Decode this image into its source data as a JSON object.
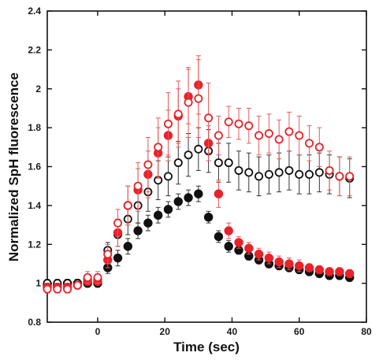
{
  "chart_data": {
    "type": "scatter",
    "title": "",
    "xlabel": "Time (sec)",
    "ylabel": "Normalized SpH fluorescence",
    "xlim": [
      -15,
      80
    ],
    "ylim": [
      0.8,
      2.4
    ],
    "x_ticks": [
      0,
      20,
      40,
      60,
      80
    ],
    "y_ticks": [
      0.8,
      1,
      1.2,
      1.4,
      1.6,
      1.8,
      2,
      2.2,
      2.4
    ],
    "y_tick_labels": [
      "0.8",
      "1",
      "1.2",
      "1.4",
      "1.6",
      "1.8",
      "2",
      "2.2",
      "2.4"
    ],
    "grid": false,
    "legend": "none",
    "error_bars": true,
    "series": [
      {
        "marker": "open-circle",
        "color": "#e8222a",
        "x": [
          -15,
          -12,
          -9,
          -6,
          -3,
          0,
          3,
          6,
          9,
          12,
          15,
          18,
          21,
          24,
          27,
          30,
          33,
          36,
          39,
          42,
          45,
          48,
          51,
          54,
          57,
          60,
          63,
          66,
          69,
          72,
          75
        ],
        "y": [
          0.97,
          0.97,
          0.97,
          0.99,
          1.03,
          1.03,
          1.15,
          1.31,
          1.4,
          1.5,
          1.61,
          1.7,
          1.82,
          1.87,
          1.93,
          1.95,
          1.85,
          1.76,
          1.83,
          1.82,
          1.81,
          1.76,
          1.77,
          1.74,
          1.78,
          1.76,
          1.72,
          1.7,
          1.58,
          1.55,
          1.55
        ],
        "err": [
          0.02,
          0.02,
          0.02,
          0.02,
          0.03,
          0.03,
          0.05,
          0.07,
          0.1,
          0.12,
          0.14,
          0.15,
          0.16,
          0.17,
          0.18,
          0.2,
          0.18,
          0.1,
          0.08,
          0.08,
          0.09,
          0.1,
          0.1,
          0.1,
          0.1,
          0.1,
          0.09,
          0.1,
          0.1,
          0.1,
          0.1
        ]
      },
      {
        "marker": "filled-circle",
        "color": "#e8222a",
        "x": [
          -15,
          -12,
          -9,
          -6,
          -3,
          0,
          3,
          6,
          9,
          12,
          15,
          18,
          21,
          24,
          27,
          30,
          33,
          36,
          39,
          42,
          45,
          48,
          51,
          54,
          57,
          60,
          63,
          66,
          69,
          72,
          75
        ],
        "y": [
          0.98,
          0.98,
          0.98,
          0.99,
          1.01,
          1.01,
          1.12,
          1.26,
          1.4,
          1.48,
          1.56,
          1.67,
          1.76,
          1.86,
          1.96,
          2.02,
          1.72,
          1.46,
          1.27,
          1.21,
          1.18,
          1.15,
          1.13,
          1.11,
          1.1,
          1.09,
          1.08,
          1.07,
          1.06,
          1.06,
          1.05
        ],
        "err": [
          0.02,
          0.02,
          0.02,
          0.02,
          0.02,
          0.02,
          0.04,
          0.07,
          0.1,
          0.11,
          0.12,
          0.13,
          0.13,
          0.14,
          0.14,
          0.15,
          0.09,
          0.07,
          0.04,
          0.03,
          0.03,
          0.03,
          0.03,
          0.03,
          0.03,
          0.03,
          0.02,
          0.02,
          0.02,
          0.02,
          0.02
        ]
      },
      {
        "marker": "open-circle",
        "color": "#111111",
        "x": [
          -15,
          -12,
          -9,
          -6,
          -3,
          0,
          3,
          6,
          9,
          12,
          15,
          18,
          21,
          24,
          27,
          30,
          33,
          36,
          39,
          42,
          45,
          48,
          51,
          54,
          57,
          60,
          63,
          66,
          69,
          72,
          75
        ],
        "y": [
          1.0,
          1.0,
          1.0,
          1.0,
          1.02,
          1.02,
          1.17,
          1.25,
          1.33,
          1.4,
          1.47,
          1.53,
          1.55,
          1.62,
          1.66,
          1.69,
          1.68,
          1.62,
          1.62,
          1.58,
          1.57,
          1.55,
          1.56,
          1.57,
          1.58,
          1.56,
          1.56,
          1.57,
          1.56,
          1.55,
          1.54
        ],
        "err": [
          0.02,
          0.02,
          0.02,
          0.02,
          0.02,
          0.02,
          0.04,
          0.06,
          0.08,
          0.09,
          0.1,
          0.1,
          0.1,
          0.11,
          0.11,
          0.11,
          0.11,
          0.1,
          0.1,
          0.1,
          0.1,
          0.1,
          0.1,
          0.1,
          0.1,
          0.1,
          0.1,
          0.1,
          0.1,
          0.1,
          0.1
        ]
      },
      {
        "marker": "filled-circle",
        "color": "#111111",
        "x": [
          -15,
          -12,
          -9,
          -6,
          -3,
          0,
          3,
          6,
          9,
          12,
          15,
          18,
          21,
          24,
          27,
          30,
          33,
          36,
          39,
          42,
          45,
          48,
          51,
          54,
          57,
          60,
          63,
          66,
          69,
          72,
          75
        ],
        "y": [
          0.99,
          0.99,
          1.0,
          1.0,
          1.0,
          1.0,
          1.08,
          1.13,
          1.19,
          1.27,
          1.31,
          1.35,
          1.38,
          1.42,
          1.44,
          1.46,
          1.34,
          1.24,
          1.19,
          1.17,
          1.14,
          1.12,
          1.1,
          1.09,
          1.08,
          1.07,
          1.06,
          1.05,
          1.04,
          1.04,
          1.03
        ],
        "err": [
          0.02,
          0.02,
          0.02,
          0.02,
          0.02,
          0.02,
          0.03,
          0.04,
          0.04,
          0.04,
          0.04,
          0.04,
          0.04,
          0.04,
          0.04,
          0.04,
          0.03,
          0.03,
          0.03,
          0.02,
          0.02,
          0.02,
          0.02,
          0.02,
          0.02,
          0.02,
          0.02,
          0.02,
          0.02,
          0.02,
          0.02
        ]
      }
    ]
  }
}
